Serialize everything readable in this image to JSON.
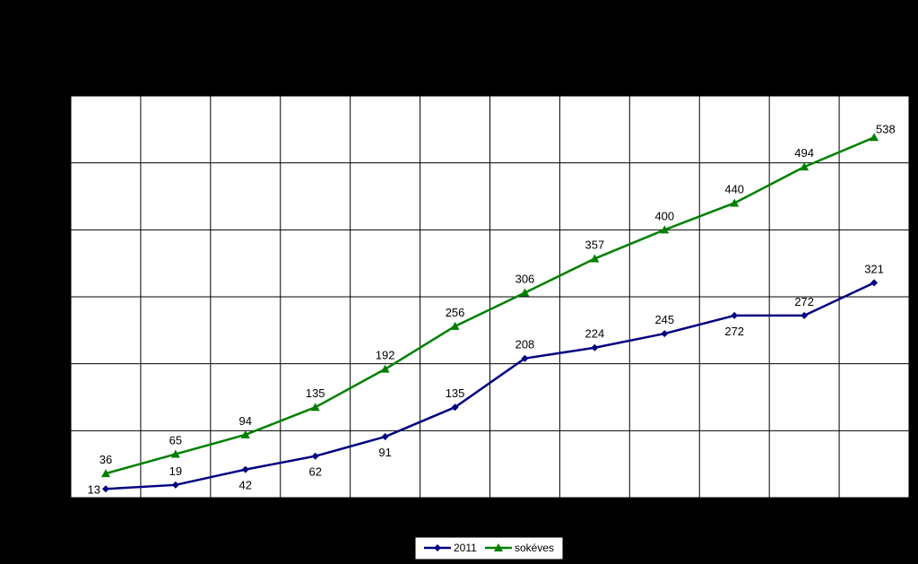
{
  "chart_data": {
    "type": "line",
    "x": [
      1,
      2,
      3,
      4,
      5,
      6,
      7,
      8,
      9,
      10,
      11,
      12
    ],
    "ylim": [
      0,
      600
    ],
    "grid": true,
    "legend_position": "bottom-center",
    "series": [
      {
        "name": "2011",
        "color": "#000080",
        "marker": "diamond",
        "values": [
          13,
          19,
          42,
          62,
          91,
          135,
          208,
          224,
          245,
          272,
          272,
          321
        ],
        "labels": [
          "13",
          "19",
          "42",
          "62",
          "91",
          "135",
          "208",
          "224",
          "245",
          "272",
          "272",
          "321"
        ],
        "label_positions": [
          "left",
          "above",
          "below",
          "below",
          "below",
          "above",
          "above",
          "above",
          "above",
          "below",
          "above",
          "above"
        ]
      },
      {
        "name": "sokéves",
        "color": "#008000",
        "marker": "triangle",
        "values": [
          36,
          65,
          94,
          135,
          192,
          256,
          306,
          357,
          400,
          440,
          494,
          538
        ],
        "labels": [
          "36",
          "65",
          "94",
          "135",
          "192",
          "256",
          "306",
          "357",
          "400",
          "440",
          "494",
          "538"
        ],
        "label_positions": [
          "above",
          "above",
          "above",
          "above",
          "above",
          "above",
          "above",
          "above",
          "above",
          "above",
          "above",
          "right"
        ]
      }
    ]
  }
}
